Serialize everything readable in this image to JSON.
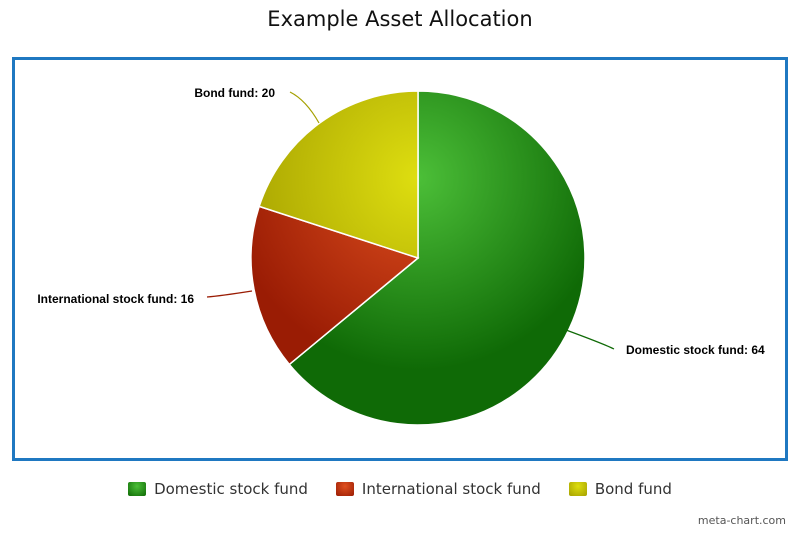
{
  "chart_data": {
    "type": "pie",
    "title": "Example Asset Allocation",
    "slices": [
      {
        "label": "Domestic stock fund",
        "value": 64,
        "data_label": "Domestic stock fund: 64",
        "color": "#2e9a1e",
        "color_light": "#4cbf38",
        "color_dark": "#0f6a06"
      },
      {
        "label": "International stock fund",
        "value": 16,
        "data_label": "International stock fund: 16",
        "color": "#c8300c",
        "color_light": "#e0501f",
        "color_dark": "#9a1c04"
      },
      {
        "label": "Bond fund",
        "value": 20,
        "data_label": "Bond fund: 20",
        "color": "#c8c400",
        "color_light": "#dede10",
        "color_dark": "#a5a000"
      }
    ],
    "legend": {
      "position": "bottom",
      "entries": [
        "Domestic stock fund",
        "International stock fund",
        "Bond fund"
      ]
    }
  },
  "frame_color": "#1f78c1",
  "credit": "meta-chart.com"
}
